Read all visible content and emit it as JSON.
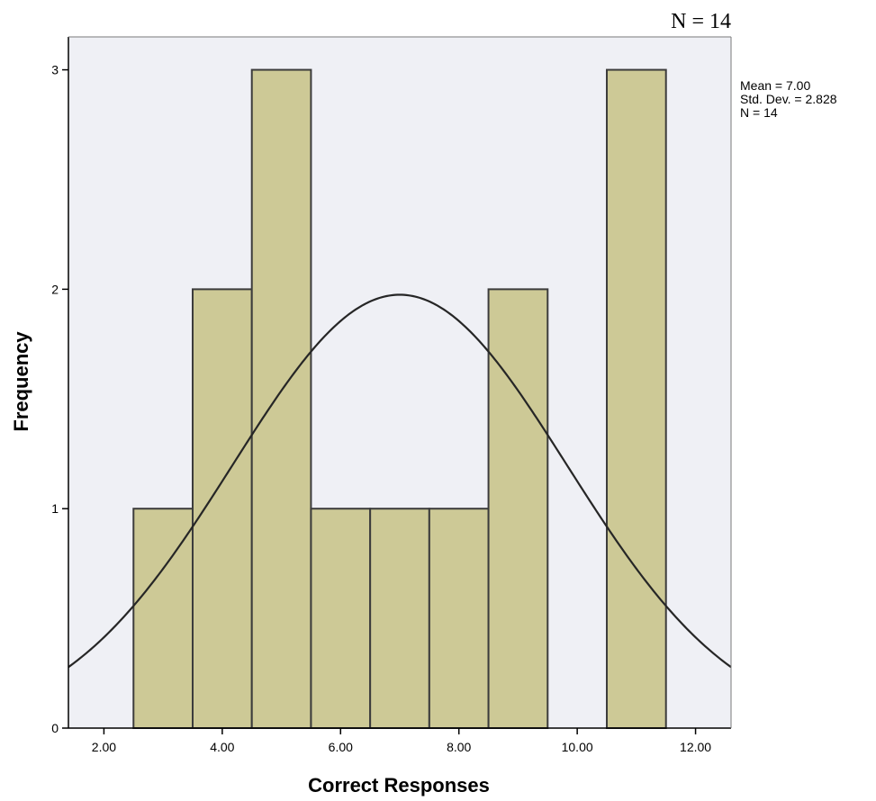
{
  "header": {
    "n_label": "N = 14"
  },
  "stats": {
    "mean_label": "Mean = 7.00",
    "sd_label": "Std. Dev. = 2.828",
    "n_label": "N = 14"
  },
  "chart_data": {
    "type": "bar",
    "subtype": "histogram",
    "title": "",
    "xlabel": "Correct Responses",
    "ylabel": "Frequency",
    "xlim": [
      1.4,
      12.6
    ],
    "ylim": [
      0,
      3.15
    ],
    "x_ticks": [
      2,
      4,
      6,
      8,
      10,
      12
    ],
    "x_tick_labels": [
      "2.00",
      "4.00",
      "6.00",
      "8.00",
      "10.00",
      "12.00"
    ],
    "y_ticks": [
      0,
      1,
      2,
      3
    ],
    "y_tick_labels": [
      "0",
      "1",
      "2",
      "3"
    ],
    "bins": [
      {
        "x0": 2.5,
        "x1": 3.5,
        "count": 1
      },
      {
        "x0": 3.5,
        "x1": 4.5,
        "count": 2
      },
      {
        "x0": 4.5,
        "x1": 5.5,
        "count": 3
      },
      {
        "x0": 5.5,
        "x1": 6.5,
        "count": 1
      },
      {
        "x0": 6.5,
        "x1": 7.5,
        "count": 1
      },
      {
        "x0": 7.5,
        "x1": 8.5,
        "count": 1
      },
      {
        "x0": 8.5,
        "x1": 9.5,
        "count": 2
      },
      {
        "x0": 10.5,
        "x1": 11.5,
        "count": 3
      }
    ],
    "normal_curve": {
      "mean": 7.0,
      "std_dev": 2.828,
      "n": 14,
      "bin_width": 1
    },
    "colors": {
      "bar_fill": "#cdc996",
      "bar_stroke": "#3c3c3c",
      "plot_background": "#eff0f5",
      "curve": "#262626",
      "frame": "#000000"
    },
    "grid": false,
    "legend": "none"
  }
}
